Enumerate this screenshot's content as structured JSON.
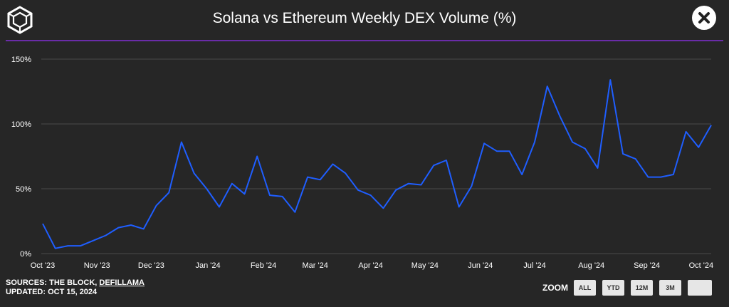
{
  "header": {
    "title": "Solana vs Ethereum Weekly DEX Volume (%)"
  },
  "footer": {
    "sources_prefix": "SOURCES: THE BLOCK, ",
    "sources_link": "DEFILLAMA",
    "updated": "UPDATED: OCT 15, 2024"
  },
  "zoom": {
    "label": "ZOOM",
    "buttons": [
      "ALL",
      "YTD",
      "12M",
      "3M",
      ""
    ]
  },
  "colors": {
    "background": "#262626",
    "accent_rule": "#6a2ca8",
    "line": "#1f5eff",
    "grid": "#4a4a4a"
  },
  "chart_data": {
    "type": "line",
    "title": "Solana vs Ethereum Weekly DEX Volume (%)",
    "xlabel": "",
    "ylabel": "",
    "ylim": [
      0,
      150
    ],
    "yticks": [
      {
        "value": 0,
        "label": "0%"
      },
      {
        "value": 50,
        "label": "50%"
      },
      {
        "value": 100,
        "label": "100%"
      },
      {
        "value": 150,
        "label": "150%"
      }
    ],
    "x_ticks": [
      {
        "index": 0,
        "label": "Oct '23"
      },
      {
        "index": 4.3,
        "label": "Nov '23"
      },
      {
        "index": 8.6,
        "label": "Dec '23"
      },
      {
        "index": 13.1,
        "label": "Jan '24"
      },
      {
        "index": 17.5,
        "label": "Feb '24"
      },
      {
        "index": 21.6,
        "label": "Mar '24"
      },
      {
        "index": 26.0,
        "label": "Apr '24"
      },
      {
        "index": 30.3,
        "label": "May '24"
      },
      {
        "index": 34.7,
        "label": "Jun '24"
      },
      {
        "index": 39.0,
        "label": "Jul '24"
      },
      {
        "index": 43.5,
        "label": "Aug '24"
      },
      {
        "index": 47.9,
        "label": "Sep '24"
      },
      {
        "index": 52.2,
        "label": "Oct '24"
      }
    ],
    "series": [
      {
        "values": [
          23,
          4,
          6,
          6,
          10,
          14,
          20,
          22,
          19,
          37,
          47,
          86,
          62,
          50,
          36,
          54,
          46,
          75,
          45,
          44,
          32,
          59,
          57,
          69,
          62,
          49,
          45,
          35,
          49,
          54,
          53,
          68,
          72,
          36,
          52,
          85,
          79,
          79,
          61,
          86,
          129,
          106,
          86,
          81,
          66,
          134,
          77,
          73,
          59,
          59,
          61,
          94,
          82,
          99
        ]
      }
    ],
    "grid": true,
    "legend": "none"
  }
}
